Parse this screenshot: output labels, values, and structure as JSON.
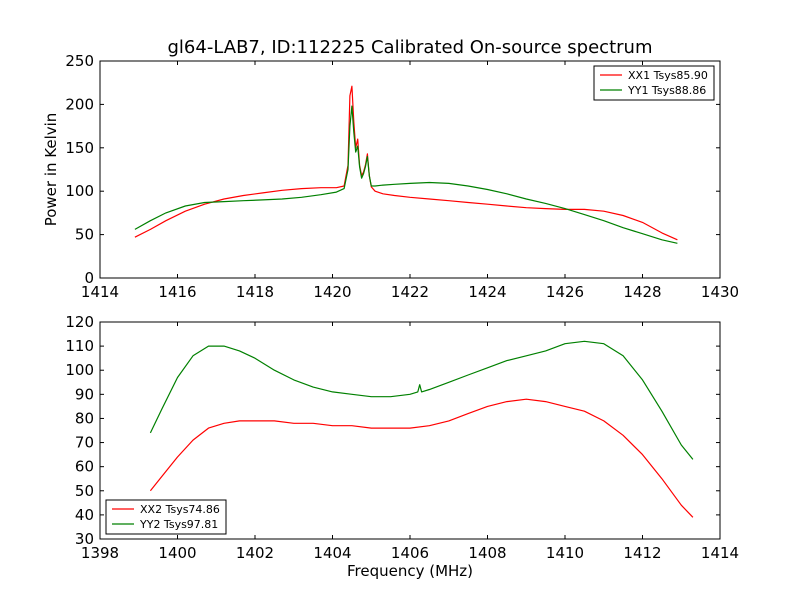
{
  "figure_title": "gl64-LAB7, ID:112225 Calibrated On-source spectrum",
  "chart_data": [
    {
      "type": "line",
      "title": "gl64-LAB7, ID:112225 Calibrated On-source spectrum",
      "xlabel": "",
      "ylabel": "Power in Kelvin",
      "xlim": [
        1414,
        1430
      ],
      "ylim": [
        0,
        250
      ],
      "xticks": [
        1414,
        1416,
        1418,
        1420,
        1422,
        1424,
        1426,
        1428,
        1430
      ],
      "xtick_labels": [
        "1414",
        "1416",
        "1418",
        "1420",
        "1422",
        "1424",
        "1426",
        "1428",
        "1430"
      ],
      "yticks": [
        0,
        50,
        100,
        150,
        200,
        250
      ],
      "ytick_labels": [
        "0",
        "50",
        "100",
        "150",
        "200",
        "250"
      ],
      "grid": false,
      "legend_position": "top-right",
      "series": [
        {
          "name": "XX1 Tsys85.90",
          "color": "#ff0000",
          "x": [
            1414.9,
            1415.3,
            1415.7,
            1416.2,
            1416.7,
            1417.2,
            1417.7,
            1418.2,
            1418.7,
            1419.2,
            1419.7,
            1420.1,
            1420.3,
            1420.4,
            1420.45,
            1420.5,
            1420.55,
            1420.6,
            1420.65,
            1420.7,
            1420.75,
            1420.8,
            1420.85,
            1420.9,
            1420.95,
            1421.0,
            1421.1,
            1421.3,
            1421.6,
            1422.0,
            1422.5,
            1423.0,
            1423.5,
            1424.0,
            1424.5,
            1425.0,
            1425.5,
            1426.0,
            1426.5,
            1427.0,
            1427.5,
            1428.0,
            1428.5,
            1428.9
          ],
          "y": [
            47,
            56,
            66,
            77,
            85,
            91,
            95,
            98,
            101,
            103,
            104,
            104,
            106,
            130,
            210,
            221,
            180,
            150,
            160,
            130,
            118,
            122,
            130,
            143,
            118,
            105,
            100,
            97,
            95,
            93,
            91,
            89,
            87,
            85,
            83,
            81,
            80,
            79,
            79,
            77,
            72,
            64,
            52,
            44
          ]
        },
        {
          "name": "YY1 Tsys88.86",
          "color": "#008000",
          "x": [
            1414.9,
            1415.3,
            1415.7,
            1416.2,
            1416.7,
            1417.2,
            1417.7,
            1418.2,
            1418.7,
            1419.2,
            1419.7,
            1420.1,
            1420.3,
            1420.4,
            1420.45,
            1420.5,
            1420.55,
            1420.6,
            1420.65,
            1420.7,
            1420.75,
            1420.8,
            1420.85,
            1420.9,
            1420.95,
            1421.0,
            1421.1,
            1421.3,
            1421.6,
            1422.0,
            1422.5,
            1423.0,
            1423.5,
            1424.0,
            1424.5,
            1425.0,
            1425.5,
            1426.0,
            1426.5,
            1427.0,
            1427.5,
            1428.0,
            1428.5,
            1428.9
          ],
          "y": [
            56,
            66,
            75,
            83,
            87,
            88,
            89,
            90,
            91,
            93,
            96,
            99,
            103,
            125,
            175,
            198,
            168,
            145,
            152,
            128,
            115,
            120,
            128,
            140,
            118,
            106,
            106,
            107,
            108,
            109,
            110,
            109,
            106,
            102,
            97,
            91,
            86,
            80,
            73,
            66,
            58,
            51,
            44,
            40
          ]
        }
      ]
    },
    {
      "type": "line",
      "title": "",
      "xlabel": "Frequency (MHz)",
      "ylabel": "",
      "xlim": [
        1398,
        1414
      ],
      "ylim": [
        30,
        120
      ],
      "xticks": [
        1398,
        1400,
        1402,
        1404,
        1406,
        1408,
        1410,
        1412,
        1414
      ],
      "xtick_labels": [
        "1398",
        "1400",
        "1402",
        "1404",
        "1406",
        "1408",
        "1410",
        "1412",
        "1414"
      ],
      "yticks": [
        30,
        40,
        50,
        60,
        70,
        80,
        90,
        100,
        110,
        120
      ],
      "ytick_labels": [
        "30",
        "40",
        "50",
        "60",
        "70",
        "80",
        "90",
        "100",
        "110",
        "120"
      ],
      "grid": false,
      "legend_position": "bottom-left",
      "series": [
        {
          "name": "XX2 Tsys74.86",
          "color": "#ff0000",
          "x": [
            1399.3,
            1399.6,
            1400.0,
            1400.4,
            1400.8,
            1401.2,
            1401.6,
            1402.0,
            1402.5,
            1403.0,
            1403.5,
            1404.0,
            1404.5,
            1405.0,
            1405.5,
            1406.0,
            1406.5,
            1407.0,
            1407.5,
            1408.0,
            1408.5,
            1409.0,
            1409.5,
            1410.0,
            1410.5,
            1411.0,
            1411.5,
            1412.0,
            1412.5,
            1413.0,
            1413.3
          ],
          "y": [
            50,
            56,
            64,
            71,
            76,
            78,
            79,
            79,
            79,
            78,
            78,
            77,
            77,
            76,
            76,
            76,
            77,
            79,
            82,
            85,
            87,
            88,
            87,
            85,
            83,
            79,
            73,
            65,
            55,
            44,
            39
          ]
        },
        {
          "name": "YY2 Tsys97.81",
          "color": "#008000",
          "x": [
            1399.3,
            1399.6,
            1400.0,
            1400.4,
            1400.8,
            1401.2,
            1401.6,
            1402.0,
            1402.5,
            1403.0,
            1403.5,
            1404.0,
            1404.5,
            1405.0,
            1405.5,
            1406.0,
            1406.2,
            1406.25,
            1406.3,
            1406.5,
            1407.0,
            1407.5,
            1408.0,
            1408.5,
            1409.0,
            1409.5,
            1410.0,
            1410.5,
            1411.0,
            1411.5,
            1412.0,
            1412.5,
            1413.0,
            1413.3
          ],
          "y": [
            74,
            84,
            97,
            106,
            110,
            110,
            108,
            105,
            100,
            96,
            93,
            91,
            90,
            89,
            89,
            90,
            91,
            94,
            91,
            92,
            95,
            98,
            101,
            104,
            106,
            108,
            111,
            112,
            111,
            106,
            96,
            83,
            69,
            63
          ]
        }
      ]
    }
  ]
}
